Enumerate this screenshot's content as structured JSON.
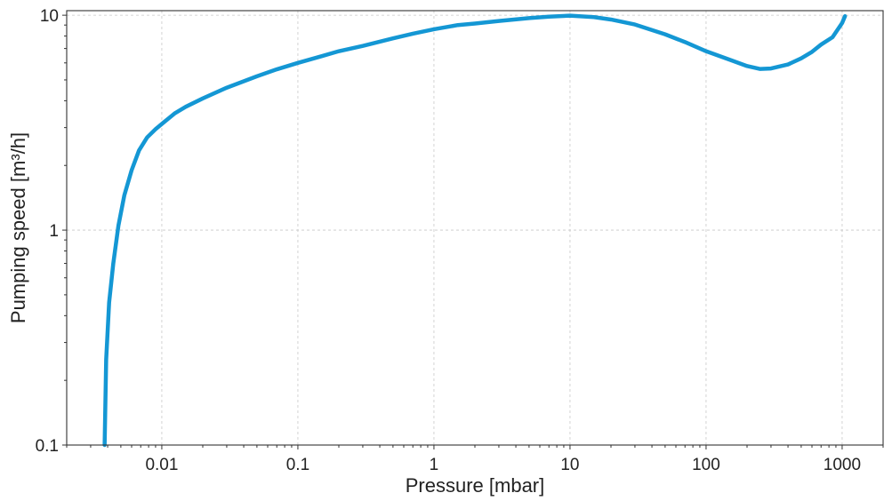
{
  "chart_data": {
    "type": "line",
    "title": "",
    "xlabel": "Pressure [mbar]",
    "ylabel": "Pumping speed [m³/h]",
    "xscale": "log",
    "yscale": "log",
    "xlim": [
      0.002,
      2000
    ],
    "ylim": [
      0.1,
      10.5
    ],
    "grid": true,
    "x_ticks": [
      {
        "value": 0.01,
        "label": "0.01"
      },
      {
        "value": 0.1,
        "label": "0.1"
      },
      {
        "value": 1,
        "label": "1"
      },
      {
        "value": 10,
        "label": "10"
      },
      {
        "value": 100,
        "label": "100"
      },
      {
        "value": 1000,
        "label": "1000"
      }
    ],
    "y_ticks": [
      {
        "value": 0.1,
        "label": "0.1"
      },
      {
        "value": 1,
        "label": "1"
      },
      {
        "value": 10,
        "label": "10"
      }
    ],
    "series": [
      {
        "name": "Pumping speed",
        "color": "#1497d4",
        "x": [
          0.0038,
          0.0039,
          0.0041,
          0.0044,
          0.0048,
          0.0053,
          0.006,
          0.0068,
          0.0078,
          0.009,
          0.0105,
          0.0125,
          0.015,
          0.02,
          0.03,
          0.05,
          0.07,
          0.1,
          0.15,
          0.2,
          0.3,
          0.5,
          0.7,
          1,
          1.5,
          2,
          3,
          5,
          7,
          10,
          15,
          20,
          30,
          50,
          70,
          100,
          150,
          200,
          250,
          300,
          400,
          500,
          600,
          700,
          850,
          1000,
          1050
        ],
        "y": [
          0.1,
          0.25,
          0.46,
          0.7,
          1.05,
          1.45,
          1.9,
          2.35,
          2.7,
          2.95,
          3.2,
          3.5,
          3.75,
          4.1,
          4.6,
          5.2,
          5.6,
          6.0,
          6.45,
          6.8,
          7.2,
          7.8,
          8.2,
          8.6,
          9.0,
          9.15,
          9.4,
          9.7,
          9.85,
          9.95,
          9.8,
          9.55,
          9.05,
          8.15,
          7.5,
          6.8,
          6.2,
          5.8,
          5.62,
          5.65,
          5.9,
          6.3,
          6.75,
          7.3,
          7.9,
          9.2,
          9.9
        ]
      }
    ]
  }
}
